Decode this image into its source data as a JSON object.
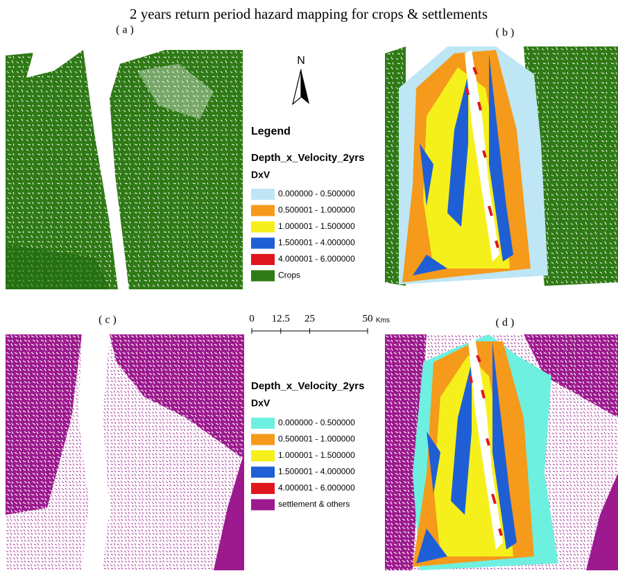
{
  "title": "2 years return period hazard mapping for crops & settlements",
  "panels": [
    {
      "label": "( a )"
    },
    {
      "label": "( b )"
    },
    {
      "label": "( c )"
    },
    {
      "label": "( d )"
    }
  ],
  "north_arrow": {
    "label": "N"
  },
  "legend_top": {
    "heading": "Legend",
    "layer": "Depth_x_Velocity_2yrs",
    "field": "DxV",
    "items": [
      {
        "label": "0.000000 - 0.500000",
        "color": "#bfe6f5"
      },
      {
        "label": "0.500001 - 1.000000",
        "color": "#f59a1b"
      },
      {
        "label": "1.000001 - 1.500000",
        "color": "#f5f01c"
      },
      {
        "label": "1.500001 - 4.000000",
        "color": "#1f5fd6"
      },
      {
        "label": "4.000001 - 6.000000",
        "color": "#e0161e"
      },
      {
        "label": "Crops",
        "color": "#2f7a16"
      }
    ]
  },
  "scale_bar": {
    "ticks": [
      0,
      12.5,
      25,
      50
    ],
    "unit": "Kms"
  },
  "legend_bottom": {
    "layer": "Depth_x_Velocity_2yrs",
    "field": "DxV",
    "items": [
      {
        "label": "0.000000 - 0.500000",
        "color": "#6ef0e0"
      },
      {
        "label": "0.500001 - 1.000000",
        "color": "#f59a1b"
      },
      {
        "label": "1.000001 - 1.500000",
        "color": "#f5f01c"
      },
      {
        "label": "1.500001 - 4.000000",
        "color": "#1f5fd6"
      },
      {
        "label": "4.000001 - 6.000000",
        "color": "#e0161e"
      },
      {
        "label": "settlement & others",
        "color": "#9c1a8e"
      }
    ]
  }
}
